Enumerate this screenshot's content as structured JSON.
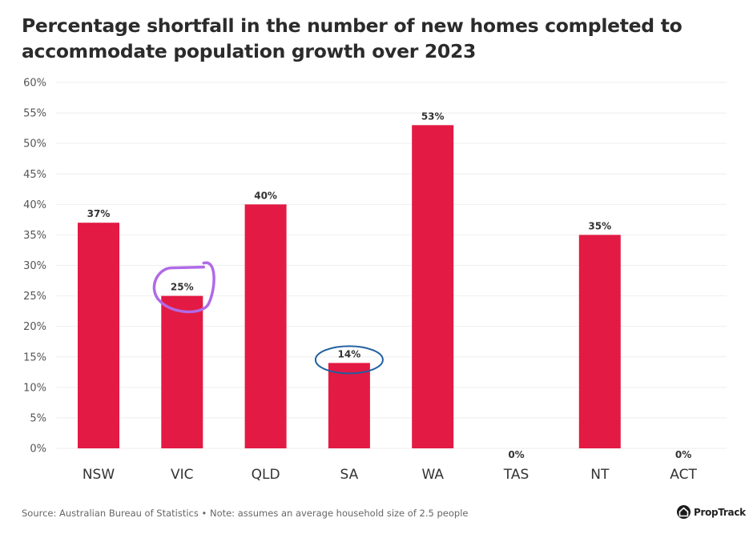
{
  "chart_data": {
    "type": "bar",
    "title": "Percentage shortfall in the number of new homes completed to accommodate population growth over 2023",
    "categories": [
      "NSW",
      "VIC",
      "QLD",
      "SA",
      "WA",
      "TAS",
      "NT",
      "ACT"
    ],
    "values": [
      37,
      25,
      40,
      14,
      53,
      0,
      35,
      0
    ],
    "data_labels": [
      "37%",
      "25%",
      "40%",
      "14%",
      "53%",
      "0%",
      "35%",
      "0%"
    ],
    "xlabel": "",
    "ylabel": "",
    "ylim": [
      0,
      60
    ],
    "yticks": [
      0,
      5,
      10,
      15,
      20,
      25,
      30,
      35,
      40,
      45,
      50,
      55,
      60
    ],
    "ytick_labels": [
      "0%",
      "5%",
      "10%",
      "15%",
      "20%",
      "25%",
      "30%",
      "35%",
      "40%",
      "45%",
      "50%",
      "55%",
      "60%"
    ],
    "grid": true,
    "bar_color": "#e31a43",
    "annotations": [
      {
        "type": "hand-drawn-circle",
        "target": "VIC",
        "color": "#b06ae6"
      },
      {
        "type": "hand-drawn-ellipse",
        "target": "SA",
        "color": "#1f5fa0"
      }
    ]
  },
  "footer": {
    "source": "Source: Australian Bureau of Statistics • Note: assumes an average household size of 2.5 people"
  },
  "brand": {
    "name": "PropTrack",
    "icon": "house-icon"
  }
}
